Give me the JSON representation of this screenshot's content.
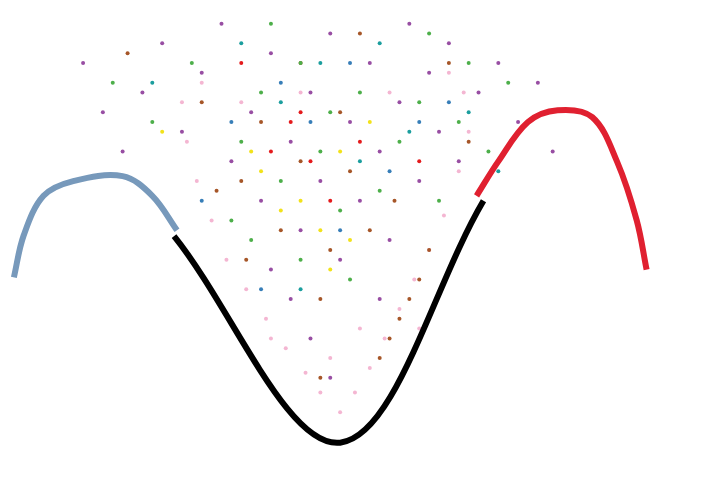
{
  "chart_data": {
    "type": "scatter",
    "xlim": [
      0,
      704
    ],
    "ylim": [
      0,
      486
    ],
    "grid": false,
    "tick_labels": false,
    "series": [
      {
        "color": "#984ea3",
        "marker": "circle",
        "x": [
          80,
          100,
          120,
          140,
          160,
          180,
          200,
          220,
          230,
          250,
          260,
          270,
          290,
          300,
          310,
          320,
          330,
          340,
          350,
          360,
          370,
          380,
          390,
          400,
          410,
          420,
          430,
          440,
          450,
          460,
          480,
          500,
          520,
          540,
          555,
          290,
          310,
          270,
          380,
          330
        ],
        "values": [
          426,
          376,
          336,
          396,
          446,
          356,
          416,
          466,
          326,
          376,
          286,
          436,
          346,
          256,
          396,
          306,
          456,
          226,
          366,
          286,
          426,
          336,
          246,
          386,
          466,
          306,
          416,
          356,
          446,
          326,
          396,
          426,
          366,
          406,
          336,
          186,
          146,
          216,
          186,
          106
        ]
      },
      {
        "color": "#4daf4a",
        "marker": "circle",
        "x": [
          110,
          150,
          190,
          240,
          260,
          280,
          300,
          320,
          340,
          360,
          380,
          400,
          420,
          440,
          460,
          490,
          510,
          300,
          350,
          230,
          330,
          270,
          430,
          250,
          470
        ],
        "values": [
          406,
          366,
          426,
          346,
          396,
          306,
          426,
          336,
          276,
          396,
          296,
          346,
          386,
          286,
          366,
          336,
          406,
          226,
          206,
          266,
          376,
          466,
          456,
          246,
          426
        ]
      },
      {
        "color": "#a65628",
        "marker": "circle",
        "x": [
          125,
          200,
          215,
          240,
          280,
          300,
          320,
          330,
          350,
          370,
          390,
          400,
          410,
          420,
          430,
          450,
          470,
          300,
          340,
          320,
          380,
          260,
          395,
          245,
          360
        ],
        "values": [
          436,
          386,
          296,
          306,
          256,
          326,
          186,
          236,
          316,
          256,
          146,
          166,
          186,
          206,
          236,
          426,
          346,
          426,
          376,
          106,
          126,
          366,
          286,
          226,
          456
        ]
      },
      {
        "color": "#f4b6d2",
        "marker": "circle",
        "x": [
          180,
          185,
          195,
          210,
          225,
          245,
          265,
          285,
          305,
          320,
          340,
          355,
          370,
          385,
          400,
          415,
          430,
          445,
          460,
          470,
          465,
          450,
          390,
          300,
          200,
          240,
          330,
          270,
          420,
          360
        ],
        "values": [
          386,
          346,
          306,
          266,
          226,
          196,
          166,
          136,
          111,
          91,
          71,
          91,
          116,
          146,
          176,
          206,
          236,
          271,
          316,
          356,
          396,
          416,
          396,
          396,
          406,
          386,
          126,
          146,
          156,
          156
        ]
      },
      {
        "color": "#f2e21a",
        "marker": "circle",
        "x": [
          160,
          260,
          280,
          300,
          320,
          340,
          370,
          350,
          250,
          330
        ],
        "values": [
          356,
          316,
          276,
          286,
          256,
          336,
          366,
          246,
          336,
          216
        ]
      },
      {
        "color": "#377eb8",
        "marker": "circle",
        "x": [
          200,
          230,
          260,
          310,
          350,
          390,
          420,
          450,
          280,
          340
        ],
        "values": [
          286,
          366,
          196,
          366,
          426,
          316,
          366,
          386,
          406,
          256
        ]
      },
      {
        "color": "#e41a1c",
        "marker": "circle",
        "x": [
          290,
          310,
          270,
          330,
          360,
          240,
          420,
          300
        ],
        "values": [
          366,
          326,
          336,
          286,
          346,
          426,
          326,
          376
        ]
      },
      {
        "color": "#1b9e9e",
        "marker": "circle",
        "x": [
          150,
          240,
          280,
          320,
          380,
          410,
          470,
          500,
          360,
          300
        ],
        "values": [
          406,
          446,
          386,
          426,
          446,
          356,
          376,
          316,
          326,
          196
        ]
      },
      {
        "type": "line",
        "color": "#7799bb",
        "line_style": "solid",
        "x": [
          10,
          20,
          40,
          70,
          120,
          150,
          175
        ],
        "values": [
          208,
          251,
          291,
          306,
          311,
          291,
          256
        ]
      },
      {
        "type": "line",
        "color": "#e02030",
        "line_style": "solid",
        "x": [
          478,
          500,
          530,
          560,
          595,
          620,
          640,
          650
        ],
        "values": [
          291,
          326,
          366,
          378,
          371,
          326,
          266,
          216
        ]
      },
      {
        "type": "line",
        "color": "#000000",
        "line_style": "solid",
        "x": [
          172,
          340,
          485
        ],
        "values": [
          250,
          40,
          286
        ]
      }
    ]
  }
}
